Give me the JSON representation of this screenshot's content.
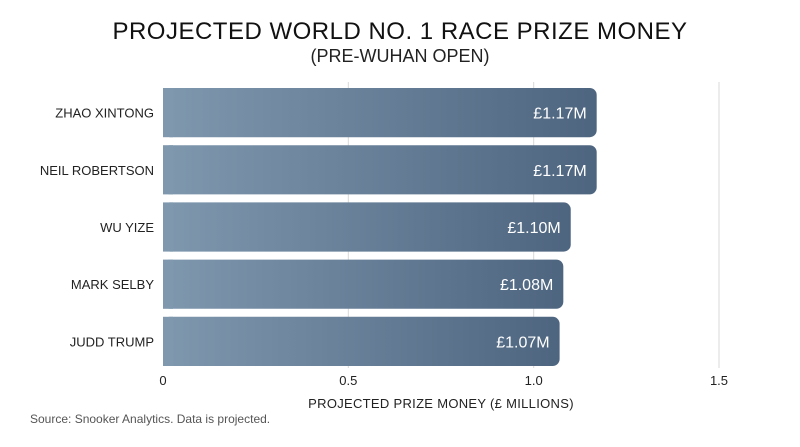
{
  "chart_data": {
    "type": "bar",
    "orientation": "horizontal",
    "title": "PROJECTED WORLD NO. 1 RACE PRIZE MONEY",
    "subtitle": "(PRE-WUHAN OPEN)",
    "categories": [
      "ZHAO XINTONG",
      "NEIL ROBERTSON",
      "WU YIZE",
      "MARK SELBY",
      "JUDD TRUMP"
    ],
    "values": [
      1.17,
      1.17,
      1.1,
      1.08,
      1.07
    ],
    "value_labels": [
      "£1.17M",
      "£1.17M",
      "£1.10M",
      "£1.08M",
      "£1.07M"
    ],
    "xlabel": "PROJECTED PRIZE MONEY (£ MILLIONS)",
    "ylabel": "",
    "xlim": [
      0,
      1.5
    ],
    "x_ticks": [
      "0",
      "0.5",
      "1.0",
      "1.5"
    ],
    "x_tick_values": [
      0,
      0.5,
      1.0,
      1.5
    ],
    "grid": true,
    "bar_color_start": "#7f98ae",
    "bar_color_end": "#4e6580"
  },
  "source": "Source: Snooker Analytics. Data is projected."
}
